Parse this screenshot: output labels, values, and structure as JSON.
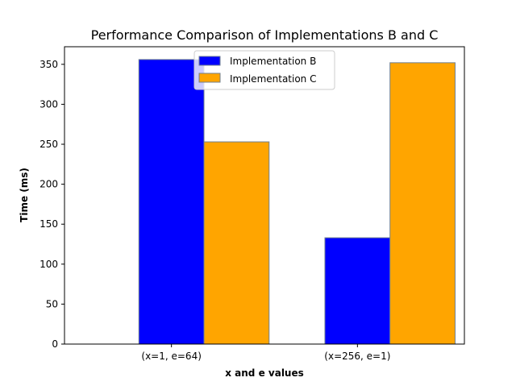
{
  "chart_data": {
    "type": "bar",
    "title": "Performance Comparison of Implementations B and C",
    "xlabel": "x and e values",
    "ylabel": "Time (ms)",
    "categories": [
      "(x=1, e=64)",
      "(x=256, e=1)"
    ],
    "series": [
      {
        "name": "Implementation B",
        "values": [
          356,
          133
        ],
        "color": "#0000ff"
      },
      {
        "name": "Implementation C",
        "values": [
          253,
          352
        ],
        "color": "#ffa500"
      }
    ],
    "ylim": [
      0,
      372
    ],
    "yticks": [
      0,
      50,
      100,
      150,
      200,
      250,
      300,
      350
    ],
    "bar_edge_color": "#708090",
    "grid": false,
    "legend_position": "top-center"
  }
}
